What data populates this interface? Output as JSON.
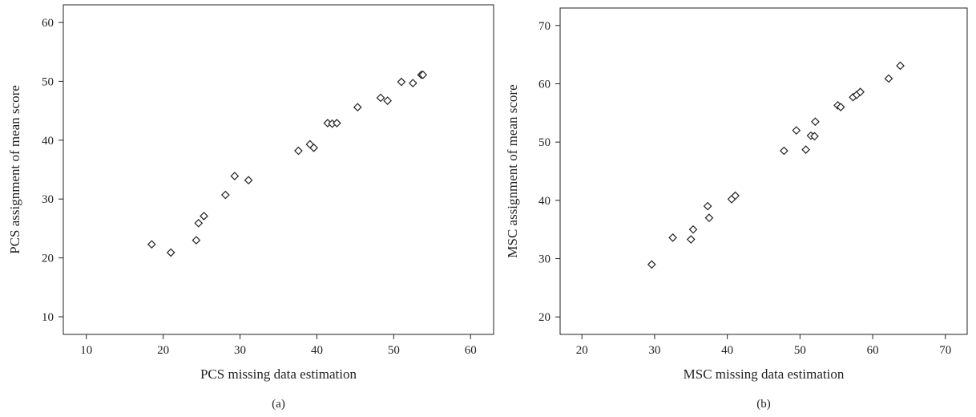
{
  "chart_data": [
    {
      "type": "scatter",
      "xlabel": "PCS missing data estimation",
      "ylabel": "PCS assignment of mean score",
      "panel_label": "(a)",
      "xlim": [
        7,
        63
      ],
      "ylim": [
        7,
        63
      ],
      "xticks": [
        10,
        20,
        30,
        40,
        50,
        60
      ],
      "yticks": [
        10,
        20,
        30,
        40,
        50,
        60
      ],
      "marker": "diamond",
      "points": [
        [
          18.5,
          22.3
        ],
        [
          21.0,
          20.9
        ],
        [
          24.3,
          23.0
        ],
        [
          24.6,
          25.9
        ],
        [
          25.3,
          27.1
        ],
        [
          28.1,
          30.7
        ],
        [
          29.3,
          33.9
        ],
        [
          31.1,
          33.2
        ],
        [
          37.6,
          38.2
        ],
        [
          39.1,
          39.3
        ],
        [
          39.6,
          38.7
        ],
        [
          41.4,
          42.9
        ],
        [
          42.0,
          42.8
        ],
        [
          42.6,
          42.9
        ],
        [
          45.3,
          45.6
        ],
        [
          48.3,
          47.2
        ],
        [
          49.2,
          46.7
        ],
        [
          51.0,
          49.9
        ],
        [
          52.5,
          49.7
        ],
        [
          53.6,
          51.1
        ],
        [
          53.8,
          51.1
        ]
      ]
    },
    {
      "type": "scatter",
      "xlabel": "MSC missing data estimation",
      "ylabel": "MSC assignment of mean score",
      "panel_label": "(b)",
      "xlim": [
        17,
        73
      ],
      "ylim": [
        17,
        73
      ],
      "xticks": [
        20,
        30,
        40,
        50,
        60,
        70
      ],
      "yticks": [
        20,
        30,
        40,
        50,
        60,
        70
      ],
      "marker": "diamond",
      "points": [
        [
          29.6,
          29.0
        ],
        [
          32.5,
          33.6
        ],
        [
          35.0,
          33.3
        ],
        [
          35.3,
          35.0
        ],
        [
          37.3,
          39.0
        ],
        [
          37.5,
          37.0
        ],
        [
          40.6,
          40.2
        ],
        [
          41.1,
          40.8
        ],
        [
          47.8,
          48.5
        ],
        [
          49.5,
          52.0
        ],
        [
          50.8,
          48.7
        ],
        [
          51.5,
          51.1
        ],
        [
          52.0,
          51.0
        ],
        [
          52.1,
          53.5
        ],
        [
          55.2,
          56.3
        ],
        [
          55.6,
          56.0
        ],
        [
          57.3,
          57.7
        ],
        [
          57.8,
          58.1
        ],
        [
          58.3,
          58.6
        ],
        [
          62.2,
          60.9
        ],
        [
          63.8,
          63.1
        ]
      ]
    }
  ]
}
